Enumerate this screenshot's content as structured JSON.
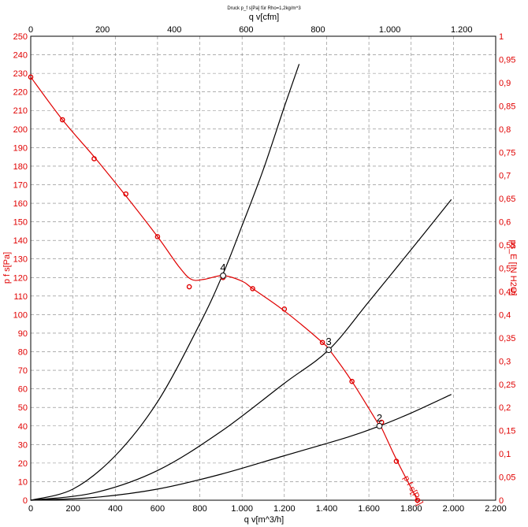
{
  "colors": {
    "fan_curve": "#e00000",
    "system_curves": "#000000",
    "grid": "#808080"
  },
  "chart_data": {
    "type": "line",
    "title": "Druck p_f s[Pa] für Rho=1,2kg/m^3",
    "xlabel": "q v[m^3/h]",
    "x2label": "q v[cfm]",
    "ylabel": "p f s[Pa]",
    "y2label": "ps_E [IN H2O]",
    "xlim": [
      0,
      2200
    ],
    "ylim": [
      0,
      250
    ],
    "x2lim": [
      0,
      1294.9
    ],
    "y2lim": [
      0,
      1
    ],
    "grid": true,
    "x_ticks": [
      "0",
      "200",
      "400",
      "600",
      "800",
      "1.000",
      "1.200",
      "1.400",
      "1.600",
      "1.800",
      "2.000",
      "2.200"
    ],
    "y_ticks": [
      "0",
      "10",
      "20",
      "30",
      "40",
      "50",
      "60",
      "70",
      "80",
      "90",
      "100",
      "110",
      "120",
      "130",
      "140",
      "150",
      "160",
      "170",
      "180",
      "190",
      "200",
      "210",
      "220",
      "230",
      "240",
      "250"
    ],
    "x2_ticks": [
      "0",
      "200",
      "400",
      "600",
      "800",
      "1.000",
      "1.200"
    ],
    "y2_ticks": [
      "0",
      "0,05",
      "0,1",
      "0,15",
      "0,2",
      "0,25",
      "0,3",
      "0,35",
      "0,4",
      "0,45",
      "0,5",
      "0,55",
      "0,6",
      "0,65",
      "0,7",
      "0,75",
      "0,8",
      "0,85",
      "0,9",
      "0,95",
      "1"
    ],
    "series": [
      {
        "name": "p f s[Pa]",
        "color": "#e00000",
        "x": [
          0,
          150,
          300,
          450,
          600,
          700,
          760,
          820,
          910,
          1000,
          1050,
          1200,
          1380,
          1420,
          1520,
          1640,
          1660,
          1730,
          1830
        ],
        "y": [
          228,
          205,
          185,
          164,
          142,
          126,
          119,
          119,
          121,
          118,
          114,
          102,
          85,
          80,
          64,
          42,
          39,
          22,
          0
        ]
      },
      {
        "name": "",
        "color": "#000000",
        "x": [
          0,
          200,
          400,
          600,
          800,
          910,
          1000,
          1100,
          1200,
          1270
        ],
        "y": [
          0,
          6,
          24,
          53,
          95,
          122,
          148,
          178,
          212,
          235
        ]
      },
      {
        "name": "",
        "color": "#000000",
        "x": [
          0,
          300,
          600,
          900,
          1200,
          1410,
          1600,
          1800,
          1990
        ],
        "y": [
          0,
          4,
          16,
          37,
          63,
          81,
          107,
          135,
          162
        ]
      },
      {
        "name": "",
        "color": "#000000",
        "x": [
          0,
          300,
          600,
          900,
          1200,
          1500,
          1650,
          1800,
          1990
        ],
        "y": [
          0,
          1.5,
          6,
          14,
          24,
          34,
          40,
          47,
          57
        ]
      }
    ],
    "markers": {
      "x": [
        0,
        150,
        300,
        450,
        600,
        750,
        910,
        1050,
        1200,
        1380,
        1520,
        1660,
        1730,
        1830
      ],
      "y": [
        228,
        205,
        184,
        165,
        142,
        115,
        120,
        114,
        103,
        85,
        64,
        42,
        21,
        0
      ]
    },
    "operating_points": [
      {
        "label": "4",
        "x": 910,
        "y": 121
      },
      {
        "label": "3",
        "x": 1410,
        "y": 81
      },
      {
        "label": "2",
        "x": 1650,
        "y": 40
      }
    ],
    "curve_label": {
      "text": "p f s[Pa]",
      "x": 1800,
      "y": 2
    }
  }
}
